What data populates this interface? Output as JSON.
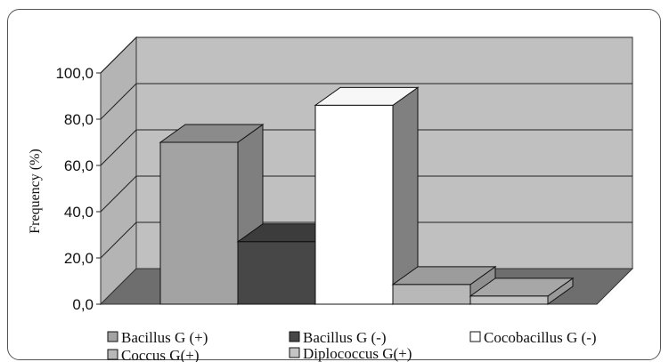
{
  "chart_data": {
    "type": "bar",
    "categories": [
      "Bacillus G (+)",
      "Bacillus G (-)",
      "Cocobacillus G (-)",
      "Coccus G(+)",
      "Diplococcus G(+)"
    ],
    "values": [
      70.0,
      27.0,
      86.0,
      8.5,
      3.5
    ],
    "colors": [
      "#a3a3a3",
      "#474747",
      "#ffffff",
      "#b8b8b8",
      "#c4c4c4"
    ],
    "ylabel": "Frequency (%)",
    "ylim": [
      0,
      100
    ],
    "yticks": [
      "0,0",
      "20,0",
      "40,0",
      "60,0",
      "80,0",
      "100,0"
    ],
    "grid": true,
    "legend_position": "bottom",
    "style": "3d"
  }
}
